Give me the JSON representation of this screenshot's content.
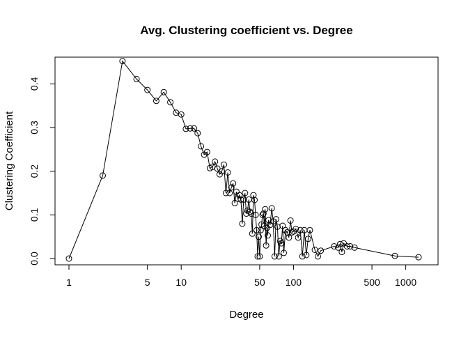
{
  "chart_data": {
    "type": "line",
    "title": "Avg. Clustering coefficient vs. Degree",
    "xlabel": "Degree",
    "ylabel": "Clustering Coefficient",
    "x_scale": "log",
    "xlim": [
      1,
      1500
    ],
    "ylim": [
      0,
      0.45
    ],
    "grid": false,
    "marker": "open-circle",
    "line_color": "#000000",
    "x_ticks": [
      {
        "value": 1,
        "label": "1"
      },
      {
        "value": 5,
        "label": "5"
      },
      {
        "value": 10,
        "label": "10"
      },
      {
        "value": 50,
        "label": "50"
      },
      {
        "value": 100,
        "label": "100"
      },
      {
        "value": 500,
        "label": "500"
      },
      {
        "value": 1000,
        "label": "1000"
      }
    ],
    "y_ticks": [
      {
        "value": 0.0,
        "label": "0.0"
      },
      {
        "value": 0.1,
        "label": "0.1"
      },
      {
        "value": 0.2,
        "label": "0.2"
      },
      {
        "value": 0.3,
        "label": "0.3"
      },
      {
        "value": 0.4,
        "label": "0.4"
      }
    ],
    "series": [
      {
        "points": [
          [
            1,
            0.0
          ],
          [
            2,
            0.19
          ],
          [
            3,
            0.452
          ],
          [
            4,
            0.411
          ],
          [
            5,
            0.386
          ],
          [
            6,
            0.361
          ],
          [
            7,
            0.381
          ],
          [
            8,
            0.358
          ],
          [
            9,
            0.334
          ],
          [
            10,
            0.33
          ],
          [
            11,
            0.297
          ],
          [
            12,
            0.298
          ],
          [
            13,
            0.298
          ],
          [
            14,
            0.287
          ],
          [
            15,
            0.257
          ],
          [
            16,
            0.238
          ],
          [
            17,
            0.244
          ],
          [
            18,
            0.207
          ],
          [
            19,
            0.21
          ],
          [
            20,
            0.222
          ],
          [
            21,
            0.206
          ],
          [
            22,
            0.193
          ],
          [
            23,
            0.2
          ],
          [
            24,
            0.215
          ],
          [
            25,
            0.15
          ],
          [
            26,
            0.197
          ],
          [
            27,
            0.15
          ],
          [
            28,
            0.163
          ],
          [
            29,
            0.172
          ],
          [
            30,
            0.127
          ],
          [
            31,
            0.153
          ],
          [
            32,
            0.137
          ],
          [
            33,
            0.145
          ],
          [
            34,
            0.135
          ],
          [
            35,
            0.08
          ],
          [
            36,
            0.135
          ],
          [
            37,
            0.15
          ],
          [
            38,
            0.103
          ],
          [
            39,
            0.11
          ],
          [
            40,
            0.135
          ],
          [
            41,
            0.107
          ],
          [
            42,
            0.103
          ],
          [
            43,
            0.057
          ],
          [
            44,
            0.145
          ],
          [
            45,
            0.134
          ],
          [
            46,
            0.1
          ],
          [
            47,
            0.065
          ],
          [
            48,
            0.005
          ],
          [
            49,
            0.05
          ],
          [
            50,
            0.005
          ],
          [
            51,
            0.065
          ],
          [
            52,
            0.078
          ],
          [
            53,
            0.1
          ],
          [
            54,
            0.103
          ],
          [
            55,
            0.075
          ],
          [
            56,
            0.113
          ],
          [
            57,
            0.03
          ],
          [
            58,
            0.07
          ],
          [
            59,
            0.053
          ],
          [
            60,
            0.088
          ],
          [
            62,
            0.077
          ],
          [
            64,
            0.115
          ],
          [
            66,
            0.085
          ],
          [
            68,
            0.005
          ],
          [
            70,
            0.09
          ],
          [
            72,
            0.073
          ],
          [
            74,
            0.005
          ],
          [
            76,
            0.04
          ],
          [
            78,
            0.035
          ],
          [
            80,
            0.075
          ],
          [
            82,
            0.013
          ],
          [
            85,
            0.065
          ],
          [
            88,
            0.06
          ],
          [
            91,
            0.048
          ],
          [
            94,
            0.087
          ],
          [
            97,
            0.06
          ],
          [
            100,
            0.062
          ],
          [
            105,
            0.068
          ],
          [
            110,
            0.048
          ],
          [
            115,
            0.065
          ],
          [
            120,
            0.005
          ],
          [
            125,
            0.065
          ],
          [
            130,
            0.008
          ],
          [
            135,
            0.045
          ],
          [
            140,
            0.065
          ],
          [
            155,
            0.02
          ],
          [
            165,
            0.005
          ],
          [
            175,
            0.018
          ],
          [
            230,
            0.028
          ],
          [
            250,
            0.025
          ],
          [
            260,
            0.033
          ],
          [
            270,
            0.015
          ],
          [
            280,
            0.035
          ],
          [
            300,
            0.028
          ],
          [
            320,
            0.028
          ],
          [
            350,
            0.025
          ],
          [
            800,
            0.006
          ],
          [
            1300,
            0.003
          ]
        ]
      }
    ]
  }
}
